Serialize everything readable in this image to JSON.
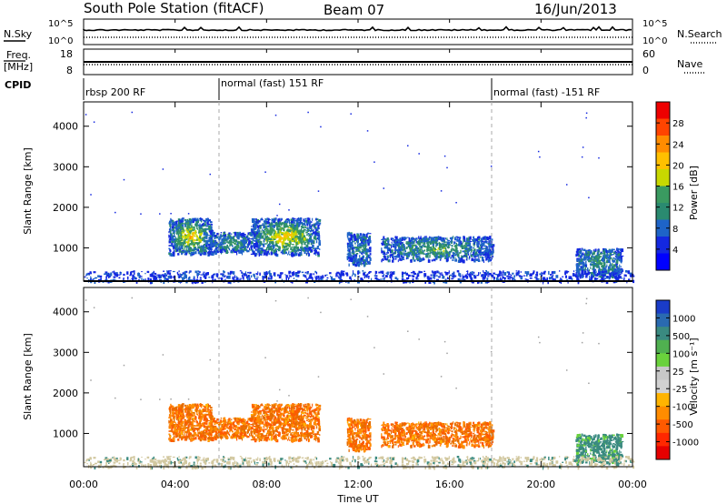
{
  "header": {
    "station": "South Pole Station (fitACF)",
    "beam": "Beam 07",
    "date": "16/Jun/2013"
  },
  "top_panels": {
    "nsky_label": "N.Sky",
    "nsky_ticks": [
      "10^5",
      "10^0"
    ],
    "nsearch_label": "N.Search",
    "nsearch_ticks": [
      "10^5",
      "10^0"
    ],
    "freq_label_line1": "Freq.",
    "freq_label_line2": "[MHz]",
    "freq_ticks": [
      "18",
      "8"
    ],
    "nave_label": "Nave",
    "nave_ticks": [
      "60",
      "0"
    ],
    "cpid_label": "CPID"
  },
  "cpid_segments": [
    {
      "label": "rbsp 200 RF",
      "start_hour": 0
    },
    {
      "label": "normal (fast) 151 RF",
      "start_hour": 6
    },
    {
      "label": "normal (fast) -151 RF",
      "start_hour": 18
    }
  ],
  "power_colorbar": {
    "label": "Power [dB]",
    "ticks": [
      "28",
      "24",
      "20",
      "16",
      "12",
      "8",
      "4"
    ],
    "colors": [
      "#ee0000",
      "#ff4400",
      "#ff8c00",
      "#ffc000",
      "#c8d800",
      "#3a9a60",
      "#2a8a70",
      "#1e64c8",
      "#1428e0",
      "#0000ff"
    ]
  },
  "velocity_colorbar": {
    "label": "Velocity [m s⁻¹]",
    "ticks": [
      "1000",
      "500",
      "100",
      "25",
      "-25",
      "-100",
      "-500",
      "-1000"
    ],
    "colors": [
      "#1a3cc8",
      "#2a6ab0",
      "#3a8a80",
      "#50b050",
      "#6ad23c",
      "#c8c8c8",
      "#d2d2d2",
      "#ffb400",
      "#ff8c00",
      "#ff5a00",
      "#ff2800",
      "#e60000"
    ]
  },
  "chart_data": {
    "type": "heatmap",
    "xlabel": "Time UT",
    "x_ticks": [
      "00:00",
      "04:00",
      "08:00",
      "12:00",
      "16:00",
      "20:00",
      "00:00"
    ],
    "xlim_hours": [
      0,
      24
    ],
    "ylabel": "Slant Range [km]",
    "y_ticks": [
      "4000",
      "3000",
      "2000",
      "1000"
    ],
    "ylim_km": [
      180,
      4600
    ],
    "scatter_regions": [
      {
        "t0": 3.7,
        "t1": 5.6,
        "r0": 850,
        "r1": 1750,
        "power_db": 18,
        "velocity": -300
      },
      {
        "t0": 7.3,
        "t1": 10.3,
        "r0": 850,
        "r1": 1750,
        "power_db": 18,
        "velocity": -300
      },
      {
        "t0": 5.6,
        "t1": 7.3,
        "r0": 900,
        "r1": 1400,
        "power_db": 8,
        "velocity": -200
      },
      {
        "t0": 11.5,
        "t1": 12.5,
        "r0": 600,
        "r1": 1400,
        "power_db": 6,
        "velocity": -150
      },
      {
        "t0": 13.0,
        "t1": 17.9,
        "r0": 700,
        "r1": 1300,
        "power_db": 10,
        "velocity": -250
      },
      {
        "t0": 21.5,
        "t1": 23.5,
        "r0": 300,
        "r1": 1000,
        "power_db": 8,
        "velocity": 100
      },
      {
        "t0": 0,
        "t1": 24,
        "r0": 180,
        "r1": 450,
        "power_db": 4,
        "velocity": 25
      }
    ]
  }
}
